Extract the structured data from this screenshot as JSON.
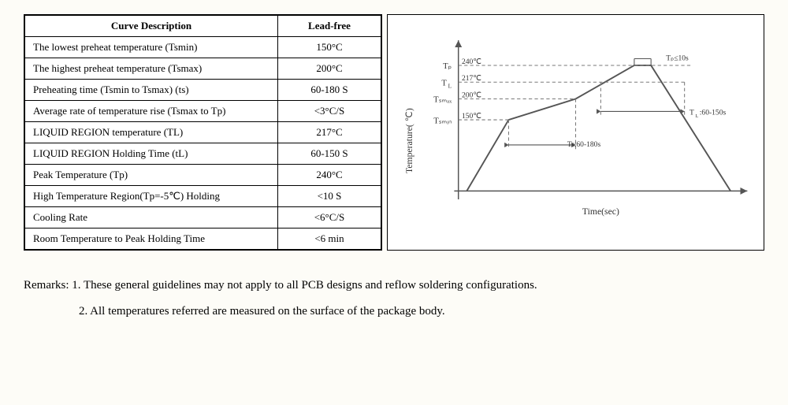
{
  "table": {
    "headers": [
      "Curve Description",
      "Lead-free"
    ],
    "rows": [
      [
        "The lowest preheat temperature (Tsmin)",
        "150°C"
      ],
      [
        "The highest preheat temperature (Tsmax)",
        "200°C"
      ],
      [
        "Preheating time (Tsmin to Tsmax) (ts)",
        "60-180 S"
      ],
      [
        "Average rate of temperature rise (Tsmax to Tp)",
        "<3°C/S"
      ],
      [
        "LIQUID REGION temperature (TL)",
        "217°C"
      ],
      [
        "LIQUID REGION Holding Time (tL)",
        "60-150 S"
      ],
      [
        "Peak Temperature (Tp)",
        "240°C"
      ],
      [
        "High Temperature Region(Tp=-5℃) Holding",
        "<10 S"
      ],
      [
        "Cooling Rate",
        "<6°C/S"
      ],
      [
        "Room Temperature to Peak Holding Time",
        "<6 min"
      ]
    ]
  },
  "chart": {
    "yaxis_label": "Temperature( ℃)",
    "xaxis_label": "Time(sec)",
    "ylabels": {
      "Tp": "Tₚ",
      "TL": "T",
      "TL_sub": "L",
      "Tsmax": "Tₛₘₐₓ",
      "Tsmin": "Tₛₘᵢₙ"
    },
    "ytemps": {
      "Tp": "240℃",
      "TL": "217℃",
      "Tsmax": "200℃",
      "Tsmin": "150℃"
    },
    "annotations": {
      "peak": "Tₚ≤10s",
      "tl": "T",
      "tl2": "L",
      "tl_val": ":60-150s",
      "ts": "Ts:60-180s"
    },
    "colors": {
      "axis": "#555555",
      "curve": "#555555",
      "dash": "#7a7a7a",
      "text": "#333333",
      "bg": "#ffffff"
    },
    "stroke_width": 1.4,
    "dash_pattern": "4,3",
    "levels": {
      "Tp": 50,
      "TL": 70,
      "Tsmax": 90,
      "Tsmin": 115,
      "base": 200
    },
    "xs": {
      "axis": 75,
      "start": 85,
      "tsmin": 135,
      "tsmax": 215,
      "tlL": 245,
      "peakL": 285,
      "peakR": 305,
      "tlR": 345,
      "end": 400
    }
  },
  "remarks": {
    "r1": "Remarks: 1. These general guidelines may not apply to all PCB designs and reflow soldering configurations.",
    "r2": "2.  All temperatures referred are measured on the surface of the package body."
  }
}
